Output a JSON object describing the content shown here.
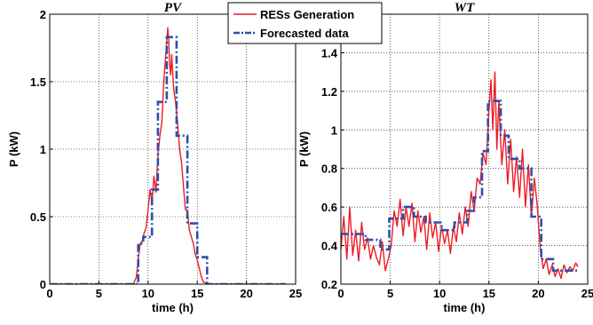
{
  "legend": {
    "entries": [
      "RESs Generation",
      "Forecasted data"
    ],
    "placement": "top-center"
  },
  "colors": {
    "actual": "#ee1c25",
    "forecast": "#2e4fa8"
  },
  "chart_data": [
    {
      "type": "line",
      "title": "PV",
      "xlabel": "time (h)",
      "ylabel": "P (kW)",
      "xlim": [
        0,
        25
      ],
      "ylim": [
        0,
        2
      ],
      "xticks": [
        "0",
        "5",
        "10",
        "15",
        "20",
        "25"
      ],
      "yticks": [
        "0",
        "0.5",
        "1",
        "1.5",
        "2"
      ],
      "grid": true,
      "series": [
        {
          "name": "RESs Generation",
          "style": "solid",
          "x": [
            0,
            8.5,
            8.8,
            9.0,
            9.2,
            9.4,
            9.6,
            9.8,
            10.0,
            10.2,
            10.4,
            10.6,
            10.8,
            11.0,
            11.2,
            11.4,
            11.6,
            11.8,
            12.0,
            12.1,
            12.2,
            12.3,
            12.4,
            12.6,
            12.8,
            13.0,
            13.2,
            13.4,
            13.6,
            13.8,
            14.0,
            14.2,
            14.4,
            14.6,
            14.8,
            15.0,
            15.2,
            15.4,
            15.6,
            16.0,
            24
          ],
          "y": [
            0,
            0,
            0.05,
            0.18,
            0.3,
            0.32,
            0.38,
            0.42,
            0.55,
            0.7,
            0.6,
            0.8,
            0.68,
            0.95,
            1.1,
            1.2,
            1.5,
            1.7,
            1.9,
            1.8,
            1.62,
            1.55,
            1.7,
            1.45,
            1.35,
            1.2,
            1.0,
            0.9,
            0.72,
            0.55,
            0.55,
            0.4,
            0.35,
            0.3,
            0.22,
            0.18,
            0.12,
            0.06,
            0.02,
            0,
            0
          ]
        },
        {
          "name": "Forecasted data",
          "style": "dash-dot",
          "x": [
            0,
            9,
            9,
            9.5,
            9.5,
            10.4,
            10.4,
            11,
            11,
            11.9,
            11.9,
            12.9,
            12.9,
            14,
            14,
            15,
            15,
            16,
            16,
            24
          ],
          "y": [
            0,
            0,
            0.3,
            0.3,
            0.35,
            0.35,
            0.7,
            0.7,
            1.35,
            1.35,
            1.83,
            1.83,
            1.1,
            1.1,
            0.45,
            0.45,
            0.2,
            0.2,
            0,
            0
          ]
        }
      ]
    },
    {
      "type": "line",
      "title": "WT",
      "xlabel": "time (h)",
      "ylabel": "P (kW)",
      "xlim": [
        0,
        25
      ],
      "ylim": [
        0.2,
        1.6
      ],
      "xticks": [
        "0",
        "5",
        "10",
        "15",
        "20",
        "25"
      ],
      "yticks": [
        "0.2",
        "0.4",
        "0.6",
        "0.8",
        "1",
        "1.2",
        "1.4"
      ],
      "grid": true,
      "series": [
        {
          "name": "RESs Generation",
          "style": "solid",
          "x": [
            0,
            0.3,
            0.6,
            0.9,
            1.2,
            1.5,
            1.8,
            2.1,
            2.4,
            2.7,
            3.0,
            3.3,
            3.6,
            3.9,
            4.2,
            4.5,
            4.8,
            5.1,
            5.4,
            5.7,
            6.0,
            6.3,
            6.6,
            6.9,
            7.2,
            7.5,
            7.8,
            8.1,
            8.4,
            8.7,
            9.0,
            9.3,
            9.6,
            9.9,
            10.2,
            10.5,
            10.8,
            11.1,
            11.4,
            11.7,
            12.0,
            12.3,
            12.6,
            12.9,
            13.2,
            13.5,
            13.8,
            14.1,
            14.4,
            14.7,
            15.0,
            15.2,
            15.4,
            15.6,
            15.8,
            16.0,
            16.3,
            16.6,
            16.9,
            17.2,
            17.5,
            17.8,
            18.1,
            18.4,
            18.7,
            19.0,
            19.3,
            19.6,
            19.9,
            20.2,
            20.5,
            20.8,
            21.1,
            21.4,
            21.7,
            22.0,
            22.3,
            22.6,
            22.9,
            23.2,
            23.5,
            23.8,
            24.0
          ],
          "y": [
            0.38,
            0.55,
            0.33,
            0.6,
            0.35,
            0.48,
            0.32,
            0.52,
            0.38,
            0.44,
            0.33,
            0.4,
            0.34,
            0.3,
            0.42,
            0.27,
            0.33,
            0.4,
            0.58,
            0.5,
            0.64,
            0.45,
            0.6,
            0.5,
            0.62,
            0.42,
            0.58,
            0.47,
            0.55,
            0.38,
            0.57,
            0.44,
            0.52,
            0.37,
            0.5,
            0.41,
            0.48,
            0.36,
            0.5,
            0.42,
            0.57,
            0.46,
            0.6,
            0.5,
            0.68,
            0.58,
            0.75,
            0.72,
            0.88,
            0.82,
            1.1,
            1.26,
            1.0,
            1.3,
            0.9,
            1.15,
            0.82,
            1.0,
            0.72,
            0.95,
            0.68,
            0.86,
            0.65,
            0.9,
            0.6,
            0.82,
            0.55,
            0.75,
            0.6,
            0.38,
            0.28,
            0.33,
            0.25,
            0.3,
            0.24,
            0.28,
            0.23,
            0.3,
            0.26,
            0.29,
            0.27,
            0.31,
            0.29
          ]
        },
        {
          "name": "Forecasted data",
          "style": "dash-dot",
          "x": [
            0,
            2.5,
            2.5,
            4,
            4,
            4.9,
            4.9,
            6.3,
            6.3,
            7.4,
            7.4,
            8.6,
            8.6,
            10.2,
            10.2,
            11.5,
            11.5,
            12.8,
            12.8,
            13.5,
            13.5,
            14.3,
            14.3,
            14.9,
            14.9,
            16.2,
            16.2,
            17,
            17,
            18.1,
            18.1,
            19.3,
            19.3,
            20.3,
            20.3,
            21.5,
            21.5,
            24
          ],
          "y": [
            0.46,
            0.46,
            0.43,
            0.43,
            0.38,
            0.38,
            0.54,
            0.54,
            0.6,
            0.6,
            0.55,
            0.55,
            0.52,
            0.52,
            0.48,
            0.48,
            0.52,
            0.52,
            0.58,
            0.58,
            0.65,
            0.65,
            0.89,
            0.89,
            1.15,
            1.15,
            0.97,
            0.97,
            0.85,
            0.85,
            0.8,
            0.8,
            0.55,
            0.55,
            0.33,
            0.33,
            0.27,
            0.27
          ]
        }
      ]
    }
  ]
}
